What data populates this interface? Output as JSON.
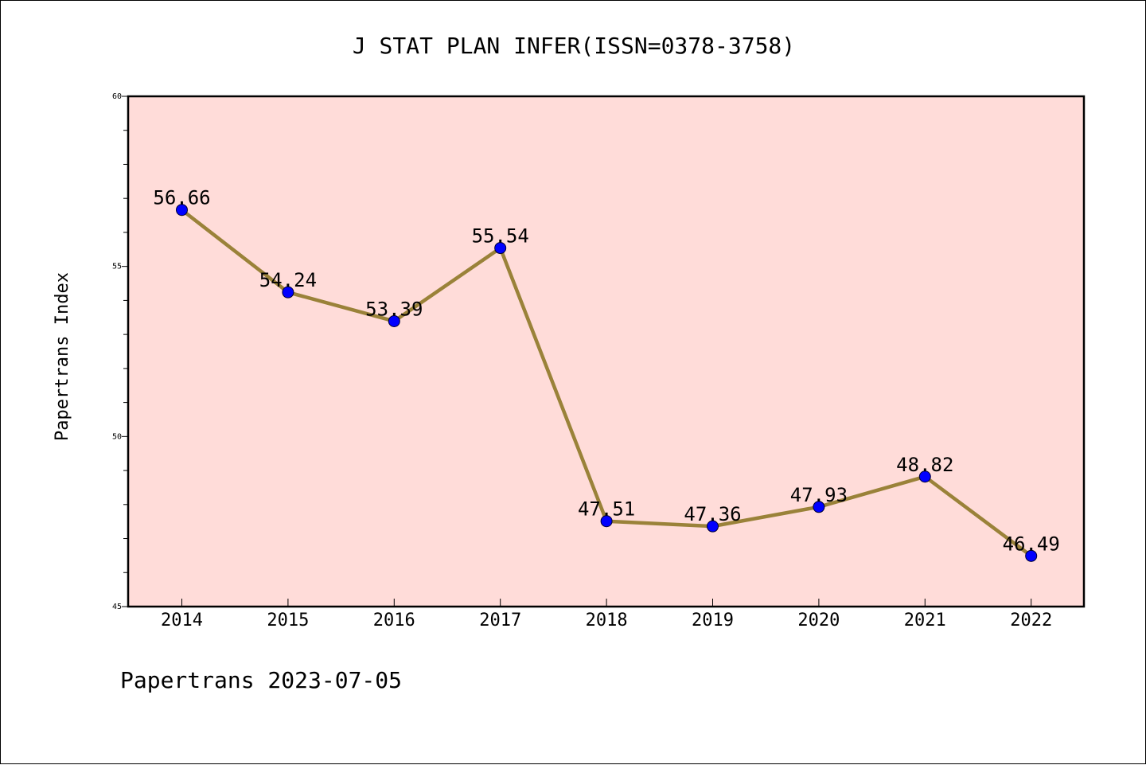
{
  "chart_data": {
    "type": "line",
    "title": "J STAT PLAN INFER(ISSN=0378-3758)",
    "xlabel": "",
    "ylabel": "Papertrans Index",
    "categories": [
      "2014",
      "2015",
      "2016",
      "2017",
      "2018",
      "2019",
      "2020",
      "2021",
      "2022"
    ],
    "series": [
      {
        "values": [
          56.66,
          54.24,
          53.39,
          55.54,
          47.51,
          47.36,
          47.93,
          48.82,
          46.49
        ],
        "value_labels": [
          "56.66",
          "54.24",
          "53.39",
          "55.54",
          "47.51",
          "47.36",
          "47.93",
          "48.82",
          "46.49"
        ]
      }
    ],
    "ylim": [
      45,
      60
    ],
    "yticks": [
      45,
      50,
      55,
      60
    ],
    "ytick_labels": [
      "45",
      "50",
      "55",
      "60"
    ],
    "grid": false,
    "legend": "none"
  },
  "footer": "Papertrans 2023-07-05",
  "colors": {
    "plot_background": "#ffdcd9",
    "line": "#9a8239",
    "marker": "#0000ff",
    "axis": "#000000"
  }
}
